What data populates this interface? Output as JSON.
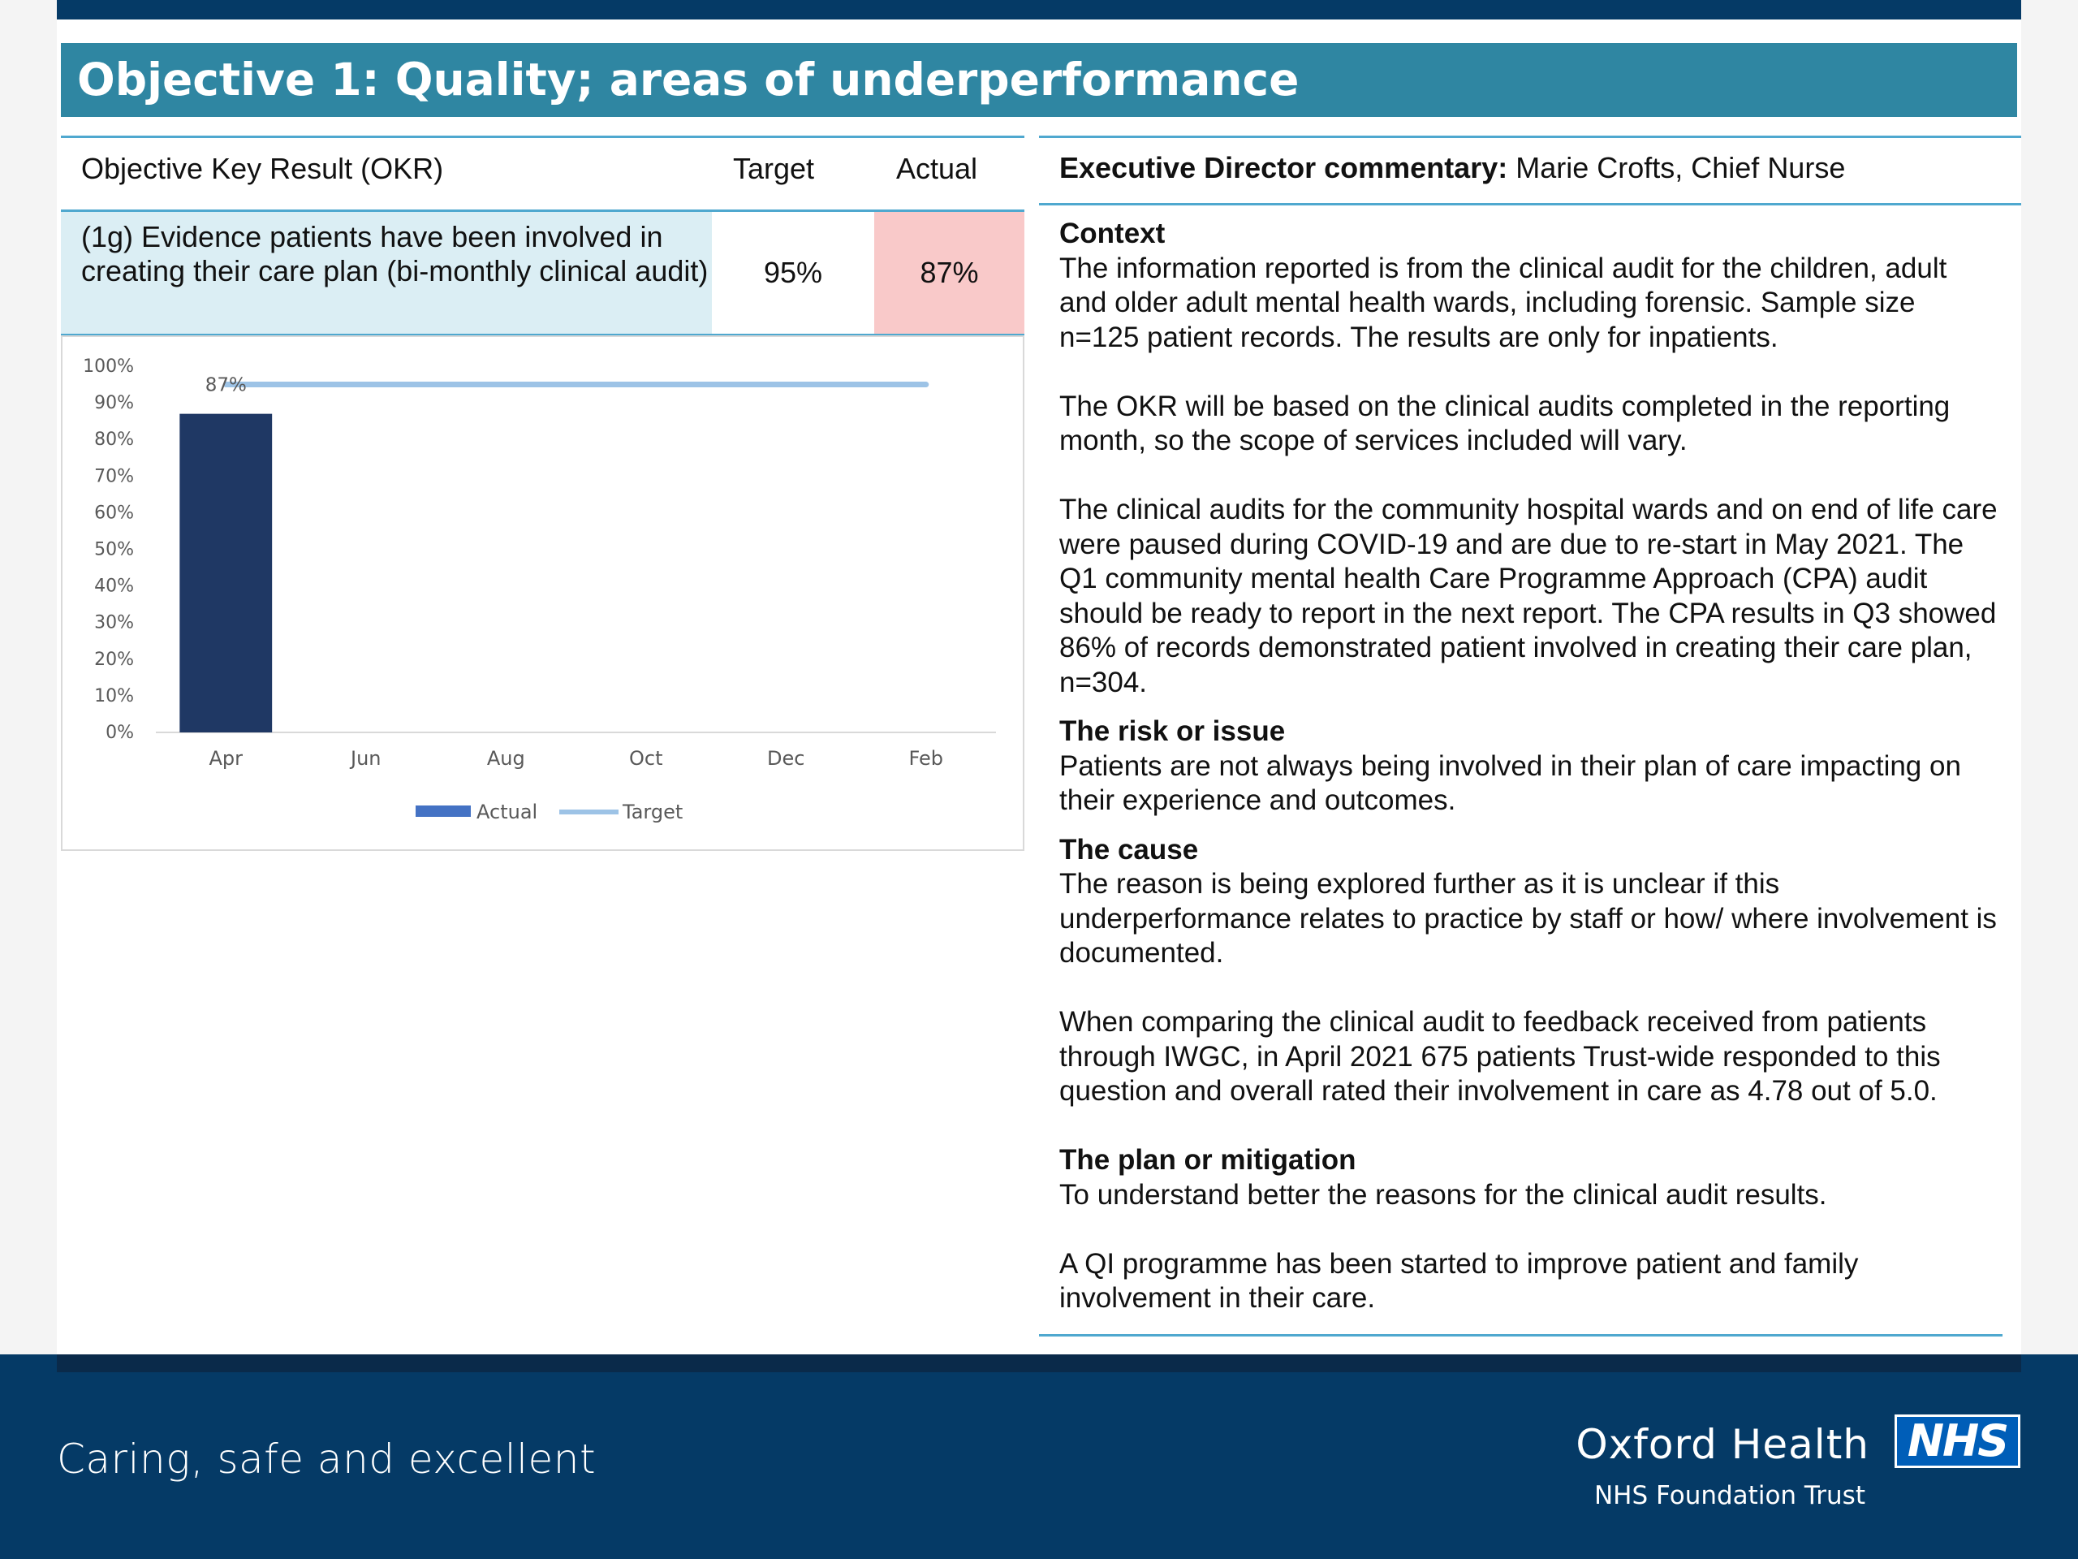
{
  "title": "Objective 1: Quality; areas of underperformance",
  "okr_table": {
    "headers": {
      "okr": "Objective Key Result (OKR)",
      "target": "Target",
      "actual": "Actual"
    },
    "row": {
      "description": "(1g) Evidence patients have been involved in creating their care plan (bi-monthly clinical audit)",
      "target": "95%",
      "actual": "87%"
    }
  },
  "chart_data": {
    "type": "bar",
    "categories": [
      "Apr",
      "Jun",
      "Aug",
      "Oct",
      "Dec",
      "Feb"
    ],
    "series": [
      {
        "name": "Actual",
        "type": "bar",
        "values": [
          87,
          null,
          null,
          null,
          null,
          null
        ],
        "color": "#1f3864"
      },
      {
        "name": "Target",
        "type": "line",
        "values": [
          95,
          95,
          95,
          95,
          95,
          95
        ],
        "color": "#9dc3e6"
      }
    ],
    "data_labels": [
      "87%"
    ],
    "yticks": [
      "0%",
      "10%",
      "20%",
      "30%",
      "40%",
      "50%",
      "60%",
      "70%",
      "80%",
      "90%",
      "100%"
    ],
    "ylim": [
      0,
      100
    ],
    "legend": [
      "Actual",
      "Target"
    ],
    "legend_position": "bottom"
  },
  "commentary": {
    "header_label": "Executive Director commentary:",
    "header_value": "Marie Crofts, Chief Nurse",
    "context_heading": "Context",
    "context_p1": "The information reported is from the clinical audit for the children, adult and older adult mental health wards, including forensic. Sample size n=125 patient records. The results are only for inpatients.",
    "context_p2": "The OKR will be based on the clinical audits completed in the reporting month, so the scope of services included will vary.",
    "context_p3": "The clinical audits for the community hospital wards and on end of life care were paused during COVID-19 and are due to re-start in May 2021. The Q1 community mental health Care Programme Approach (CPA) audit should be ready to report in the next report. The CPA results in Q3 showed 86% of records demonstrated patient involved in creating their care plan, n=304.",
    "risk_heading": "The risk or issue",
    "risk_p1": "Patients are not always being involved in their plan of care impacting on their experience and outcomes.",
    "cause_heading": "The cause",
    "cause_p1": "The reason is being explored further as it is unclear if this underperformance relates to practice by staff or how/ where involvement is documented.",
    "cause_p2": "When comparing the clinical audit to feedback received from patients through IWGC, in April 2021 675 patients Trust-wide responded to this question and overall rated their involvement in care as 4.78 out of 5.0.",
    "plan_heading": "The plan or mitigation",
    "plan_p1": "To understand better the reasons for the clinical audit results.",
    "plan_p2": "A QI programme has been started to improve patient and family involvement in their care."
  },
  "footer": {
    "tagline": "Caring, safe and excellent",
    "org_name": "Oxford Health",
    "logo": "NHS",
    "org_sub": "NHS Foundation Trust"
  }
}
